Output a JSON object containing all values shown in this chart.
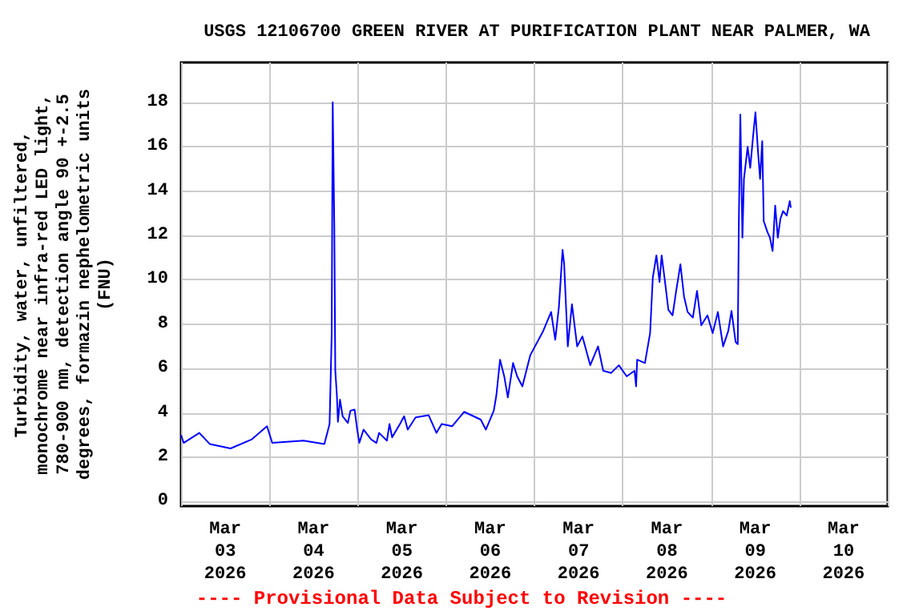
{
  "chart_data": {
    "type": "line",
    "title": "USGS 12106700 GREEN RIVER AT PURIFICATION PLANT NEAR PALMER, WA",
    "ylabel": "Turbidity, water, unfiltered,\nmonochrome near infra-red LED light,\n780-900 nm, detection angle 90 +-2.5\ndegrees, formazin nephelometric units\n(FNU)",
    "annotations": [
      "---- Provisional Data Subject to Revision ----"
    ],
    "grid": true,
    "marker": "none",
    "line_style": "solid",
    "xlim": [
      "2026-03-03T00:00",
      "2026-03-11T00:00"
    ],
    "xticks": [
      {
        "value": "2026-03-03T00:00",
        "label": null
      },
      {
        "value": "2026-03-03T12:00",
        "label": "Mar\n03\n2026"
      },
      {
        "value": "2026-03-04T00:00",
        "label": null
      },
      {
        "value": "2026-03-04T12:00",
        "label": "Mar\n04\n2026"
      },
      {
        "value": "2026-03-05T00:00",
        "label": null
      },
      {
        "value": "2026-03-05T12:00",
        "label": "Mar\n05\n2026"
      },
      {
        "value": "2026-03-06T00:00",
        "label": null
      },
      {
        "value": "2026-03-06T12:00",
        "label": "Mar\n06\n2026"
      },
      {
        "value": "2026-03-07T00:00",
        "label": null
      },
      {
        "value": "2026-03-07T12:00",
        "label": "Mar\n07\n2026"
      },
      {
        "value": "2026-03-08T00:00",
        "label": null
      },
      {
        "value": "2026-03-08T12:00",
        "label": "Mar\n08\n2026"
      },
      {
        "value": "2026-03-09T00:00",
        "label": null
      },
      {
        "value": "2026-03-09T12:00",
        "label": "Mar\n09\n2026"
      },
      {
        "value": "2026-03-10T00:00",
        "label": null
      },
      {
        "value": "2026-03-10T12:00",
        "label": "Mar\n10\n2026"
      },
      {
        "value": "2026-03-11T00:00",
        "label": null
      }
    ],
    "ylim": [
      -0.2,
      19.8
    ],
    "yticks": [
      0,
      2,
      4,
      6,
      8,
      10,
      12,
      14,
      16,
      18
    ],
    "series": [
      {
        "color": "#0000ff",
        "x": [
          "2026-03-03T00:00",
          "2026-03-03T00:42",
          "2026-03-03T04:57",
          "2026-03-03T07:47",
          "2026-03-03T13:27",
          "2026-03-03T19:07",
          "2026-03-03T23:21",
          "2026-03-04T00:46",
          "2026-03-04T09:16",
          "2026-03-04T14:56",
          "2026-03-04T16:21",
          "2026-03-04T16:55",
          "2026-03-04T17:12",
          "2026-03-04T17:38",
          "2026-03-04T17:54",
          "2026-03-04T18:20",
          "2026-03-04T18:37",
          "2026-03-04T19:11",
          "2026-03-04T19:54",
          "2026-03-04T21:19",
          "2026-03-04T22:01",
          "2026-03-04T23:09",
          "2026-03-04T23:51",
          "2026-03-05T00:26",
          "2026-03-05T01:34",
          "2026-03-05T03:40",
          "2026-03-05T05:05",
          "2026-03-05T05:48",
          "2026-03-05T07:55",
          "2026-03-05T08:38",
          "2026-03-05T09:20",
          "2026-03-05T11:28",
          "2026-03-05T12:36",
          "2026-03-05T13:35",
          "2026-03-05T15:43",
          "2026-03-05T19:15",
          "2026-03-05T21:23",
          "2026-03-05T22:48",
          "2026-03-06T01:38",
          "2026-03-06T04:54",
          "2026-03-06T09:25",
          "2026-03-06T10:49",
          "2026-03-06T12:58",
          "2026-03-06T13:40",
          "2026-03-06T14:40",
          "2026-03-06T15:48",
          "2026-03-06T16:47",
          "2026-03-06T18:12",
          "2026-03-06T19:19",
          "2026-03-06T20:44",
          "2026-03-06T22:52",
          "2026-03-07T02:24",
          "2026-03-07T04:32",
          "2026-03-07T05:40",
          "2026-03-07T06:40",
          "2026-03-07T07:39",
          "2026-03-07T08:05",
          "2026-03-07T09:04",
          "2026-03-07T10:12",
          "2026-03-07T11:37",
          "2026-03-07T13:02",
          "2026-03-07T15:10",
          "2026-03-07T17:17",
          "2026-03-07T18:42",
          "2026-03-07T20:50",
          "2026-03-07T22:57",
          "2026-03-08T01:05",
          "2026-03-08T03:12",
          "2026-03-08T03:38",
          "2026-03-08T03:55",
          "2026-03-08T06:02",
          "2026-03-08T07:26",
          "2026-03-08T08:10",
          "2026-03-08T09:09",
          "2026-03-08T10:00",
          "2026-03-08T10:34",
          "2026-03-08T11:25",
          "2026-03-08T12:24",
          "2026-03-08T13:32",
          "2026-03-08T14:31",
          "2026-03-08T15:40",
          "2026-03-08T16:39",
          "2026-03-08T17:38",
          "2026-03-08T19:03",
          "2026-03-08T20:11",
          "2026-03-08T21:20",
          "2026-03-08T23:01",
          "2026-03-09T00:26",
          "2026-03-09T01:51",
          "2026-03-09T03:16",
          "2026-03-09T04:41",
          "2026-03-09T05:33",
          "2026-03-09T06:40",
          "2026-03-09T07:15",
          "2026-03-09T07:32",
          "2026-03-09T07:57",
          "2026-03-09T08:31",
          "2026-03-09T08:56",
          "2026-03-09T09:56",
          "2026-03-09T10:38",
          "2026-03-09T11:21",
          "2026-03-09T12:03",
          "2026-03-09T12:46",
          "2026-03-09T13:19",
          "2026-03-09T13:54",
          "2026-03-09T14:18",
          "2026-03-09T15:19",
          "2026-03-09T16:00",
          "2026-03-09T16:43",
          "2026-03-09T17:25",
          "2026-03-09T18:08",
          "2026-03-09T18:50",
          "2026-03-09T19:34",
          "2026-03-09T20:33",
          "2026-03-09T21:23",
          "2026-03-09T21:40"
        ],
        "values": [
          3.0,
          2.65,
          3.1,
          2.6,
          2.4,
          2.8,
          3.4,
          2.65,
          2.75,
          2.6,
          3.5,
          7.5,
          18.0,
          12.4,
          5.9,
          4.8,
          3.6,
          4.6,
          3.85,
          3.55,
          4.1,
          4.15,
          3.25,
          2.65,
          3.25,
          2.8,
          2.65,
          3.1,
          2.75,
          3.5,
          2.9,
          3.5,
          3.85,
          3.25,
          3.8,
          3.9,
          3.1,
          3.5,
          3.4,
          4.05,
          3.7,
          3.25,
          4.1,
          4.8,
          6.4,
          5.65,
          4.7,
          6.25,
          5.65,
          5.2,
          6.6,
          7.7,
          8.55,
          7.3,
          8.8,
          11.35,
          10.7,
          7.0,
          8.9,
          7.0,
          7.45,
          6.15,
          7.0,
          5.9,
          5.8,
          6.15,
          5.65,
          5.9,
          5.2,
          6.4,
          6.25,
          7.6,
          10.1,
          11.1,
          9.9,
          11.1,
          10.0,
          8.65,
          8.4,
          9.5,
          10.7,
          9.25,
          8.55,
          8.3,
          9.5,
          7.95,
          8.4,
          7.6,
          8.55,
          7.0,
          7.7,
          8.6,
          7.2,
          7.1,
          12.5,
          17.45,
          11.9,
          14.55,
          16.0,
          15.05,
          16.35,
          17.55,
          15.75,
          14.55,
          16.25,
          12.65,
          12.15,
          11.9,
          11.3,
          13.35,
          11.9,
          12.75,
          13.1,
          12.9,
          13.55,
          13.25
        ]
      }
    ]
  }
}
